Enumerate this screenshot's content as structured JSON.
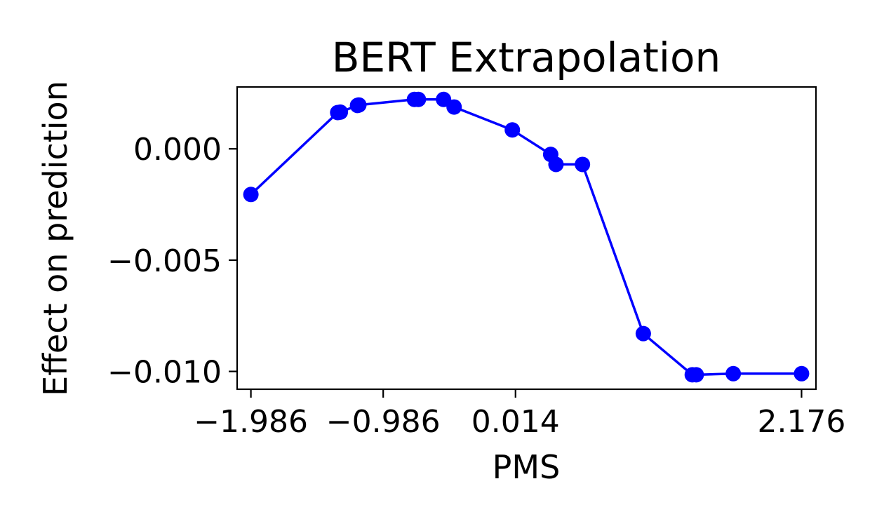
{
  "chart_data": {
    "type": "line",
    "title": "BERT Extrapolation",
    "xlabel": "PMS",
    "ylabel": "Effect on prediction",
    "xlim": [
      -2.09,
      2.285
    ],
    "ylim": [
      -0.0108,
      0.00278
    ],
    "xticks": [
      {
        "value": -1.986,
        "label": "−1.986"
      },
      {
        "value": -0.986,
        "label": "−0.986"
      },
      {
        "value": 0.014,
        "label": "0.014"
      },
      {
        "value": 2.176,
        "label": "2.176"
      }
    ],
    "yticks": [
      {
        "value": 0.0,
        "label": "0.000"
      },
      {
        "value": -0.005,
        "label": "−0.005"
      },
      {
        "value": -0.01,
        "label": "−0.010"
      }
    ],
    "grid": false,
    "legend": "none",
    "colors": {
      "series": "#0000ff",
      "axes": "#000000"
    },
    "series": [
      {
        "x": [
          -1.986,
          -1.33,
          -1.31,
          -1.18,
          -1.17,
          -0.75,
          -0.72,
          -0.53,
          -0.45,
          -0.01,
          0.28,
          0.32,
          0.52,
          0.98,
          1.35,
          1.38,
          1.66,
          2.176
        ],
        "y": [
          -0.00205,
          0.00163,
          0.00165,
          0.00195,
          0.00197,
          0.00222,
          0.00222,
          0.00222,
          0.00188,
          0.00085,
          -0.00025,
          -0.0007,
          -0.0007,
          -0.0083,
          -0.01015,
          -0.01015,
          -0.0101,
          -0.0101
        ]
      }
    ]
  }
}
